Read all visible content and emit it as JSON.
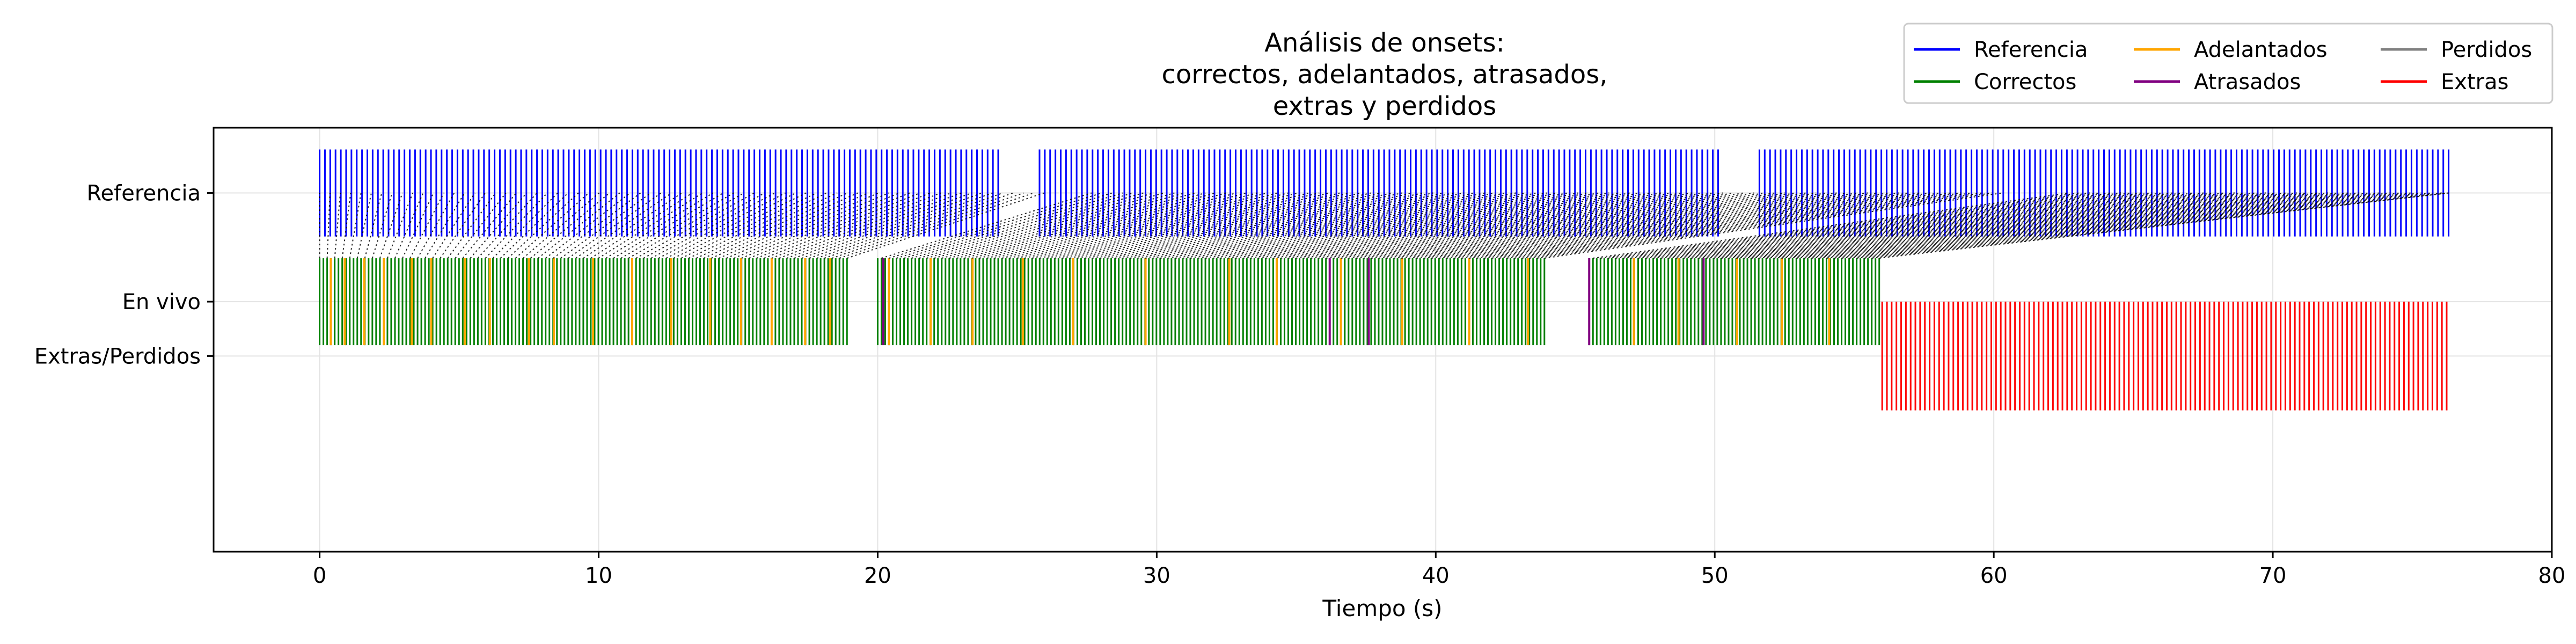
{
  "chart_data": {
    "type": "onset-timeline",
    "title_lines": [
      "Análisis de onsets:",
      "correctos, adelantados, atrasados,",
      "extras y perdidos"
    ],
    "xlabel": "Tiempo (s)",
    "xlim": [
      -3.8,
      80
    ],
    "xticks": [
      0,
      10,
      20,
      30,
      40,
      50,
      60,
      70,
      80
    ],
    "ylim": [
      -1.65,
      0.3
    ],
    "yticks": [
      {
        "label": "Referencia",
        "value": 0
      },
      {
        "label": "En vivo",
        "value": -0.5
      },
      {
        "label": "Extras/Perdidos",
        "value": -0.75
      }
    ],
    "grid": true,
    "legend": {
      "placement": "top-right",
      "columns": 3,
      "entries": [
        {
          "label": "Referencia",
          "color": "#0000ff"
        },
        {
          "label": "Correctos",
          "color": "#008000"
        },
        {
          "label": "Adelantados",
          "color": "#ffa500"
        },
        {
          "label": "Atrasados",
          "color": "#800080"
        },
        {
          "label": "Perdidos",
          "color": "#808080"
        },
        {
          "label": "Extras",
          "color": "#ff0000"
        }
      ]
    },
    "colors": {
      "reference": "#0000ff",
      "correct": "#008000",
      "early": "#ffa500",
      "late": "#800080",
      "extra": "#ff0000",
      "connector": "#000000"
    },
    "reference_segments": [
      [
        0,
        24.5
      ],
      [
        25.8,
        50.3
      ],
      [
        51.6,
        76.3
      ]
    ],
    "reference_step_s": 0.19,
    "live_segments": [
      [
        0,
        19.0
      ],
      [
        20.0,
        44.0
      ],
      [
        45.5,
        56.0
      ]
    ],
    "live_step_s": 0.135,
    "early_onsets_s": [
      0.4,
      0.9,
      1.6,
      2.3,
      3.3,
      4.0,
      5.2,
      6.1,
      7.5,
      8.4,
      9.8,
      11.2,
      12.6,
      14.0,
      15.1,
      16.2,
      17.4,
      18.3,
      20.4,
      21.9,
      23.4,
      25.2,
      27.0,
      29.6,
      32.6,
      34.3,
      36.6,
      38.8,
      41.2,
      43.3,
      47.1,
      48.7,
      50.8,
      52.4,
      54.1
    ],
    "late_onsets_s": [
      20.2,
      36.2,
      37.6,
      45.5,
      49.6
    ],
    "extra_segment": [
      56.0,
      76.3
    ],
    "extra_step_s": 0.17
  }
}
